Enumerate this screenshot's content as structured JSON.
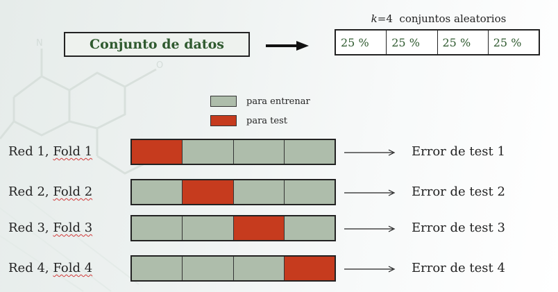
{
  "colors": {
    "train": "#aebdab",
    "test": "#c63b1e",
    "title_text": "#2f5a2f"
  },
  "dataset": {
    "label": "Conjunto de datos"
  },
  "splits": {
    "caption_var": "k",
    "caption_rest": "=4  conjuntos aleatorios",
    "parts": [
      "25 %",
      "25 %",
      "25 %",
      "25 %"
    ]
  },
  "legend": [
    {
      "label": "para entrenar",
      "kind": "train"
    },
    {
      "label": "para test",
      "kind": "test"
    }
  ],
  "folds": [
    {
      "net": "Red 1, ",
      "fold": "Fold 1",
      "test_index": 0,
      "error": "Error de test 1"
    },
    {
      "net": "Red 2, ",
      "fold": "Fold 2",
      "test_index": 1,
      "error": "Error de test 2"
    },
    {
      "net": "Red 3, ",
      "fold": "Fold 3",
      "test_index": 2,
      "error": "Error de test 3"
    },
    {
      "net": "Red 4, ",
      "fold": "Fold 4",
      "test_index": 3,
      "error": "Error de test 4"
    }
  ]
}
